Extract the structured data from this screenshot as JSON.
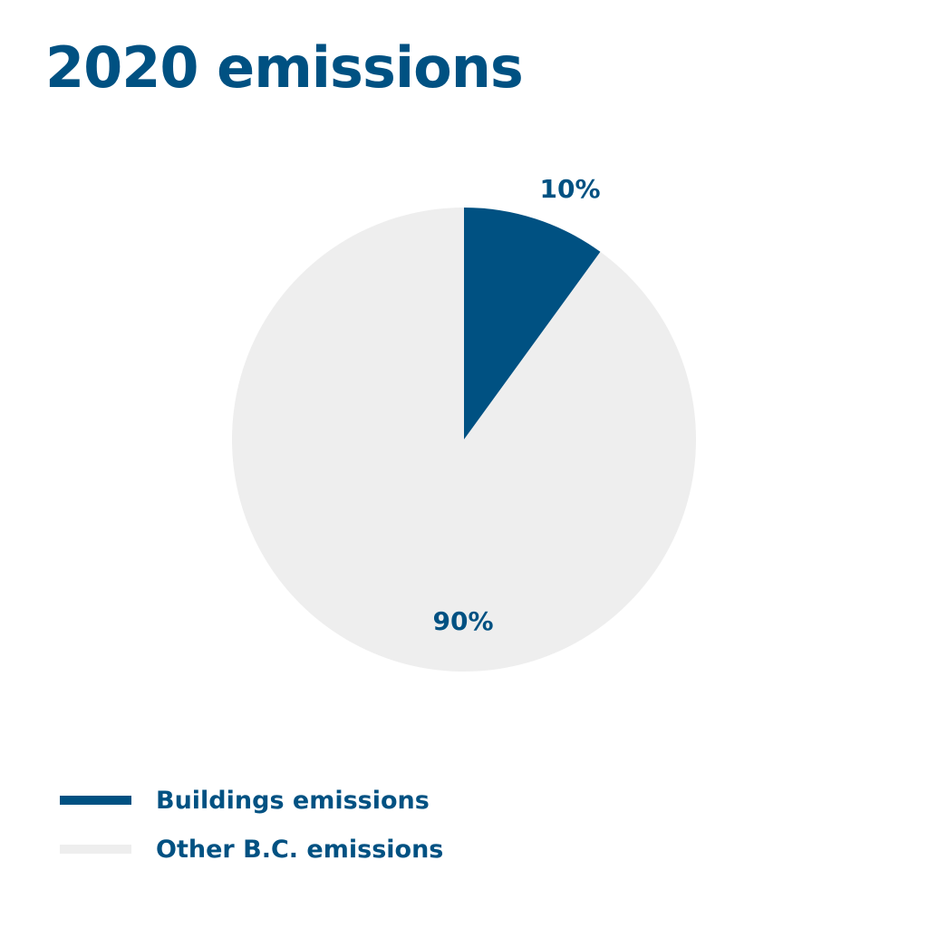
{
  "chart_data": {
    "type": "pie",
    "title": "2020 emissions",
    "slices": [
      {
        "label": "Buildings emissions",
        "value": 10,
        "display": "10%",
        "color": "#005182"
      },
      {
        "label": "Other B.C. emissions",
        "value": 90,
        "display": "90%",
        "color": "#eeeeee"
      }
    ],
    "label_color": "#005182",
    "legend_position": "bottom-left"
  }
}
